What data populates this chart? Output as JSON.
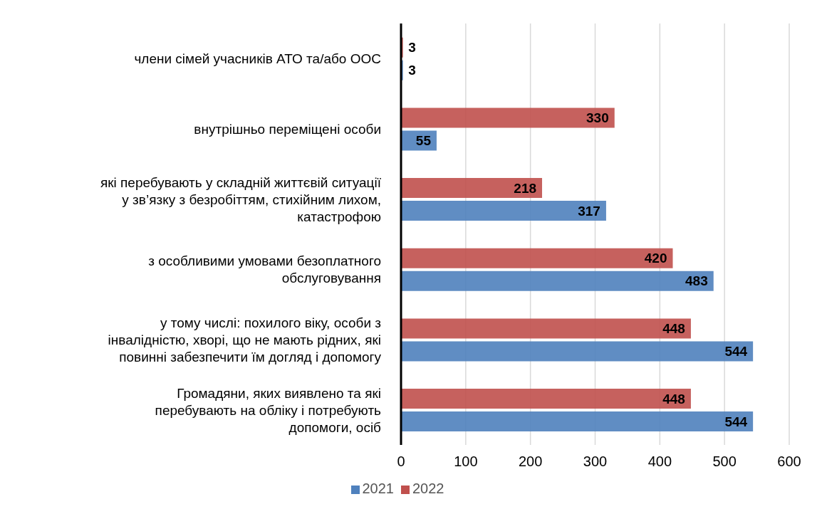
{
  "chart_data": {
    "type": "bar",
    "orientation": "horizontal",
    "categories": [
      "члени сімей учасників АТО  та/або ООС",
      "внутрішньо переміщені  особи",
      "які перебувають у складній життєвій ситуації\nу зв’язку з безробіттям, стихійним лихом,\nкатастрофою",
      "з особливими умовами безоплатного\nобслуговування",
      "у тому числі: похилого  віку, особи з\nінвалідністю, хворі, що не мають рідних, які\nповинні забезпечити їм догляд і допомогу",
      "Громадяни, яких виявлено та які\nперебувають на обліку і потребують\nдопомоги, осіб"
    ],
    "series": [
      {
        "name": "2022",
        "color": "#c0504d",
        "values": [
          3,
          330,
          218,
          420,
          448,
          448
        ]
      },
      {
        "name": "2021",
        "color": "#4f81bd",
        "values": [
          3,
          55,
          317,
          483,
          544,
          544
        ]
      }
    ],
    "xlim": [
      0,
      600
    ],
    "xticks": [
      0,
      100,
      200,
      300,
      400,
      500,
      600
    ],
    "grid": "x",
    "legend": "bottom",
    "data_labels": true
  }
}
